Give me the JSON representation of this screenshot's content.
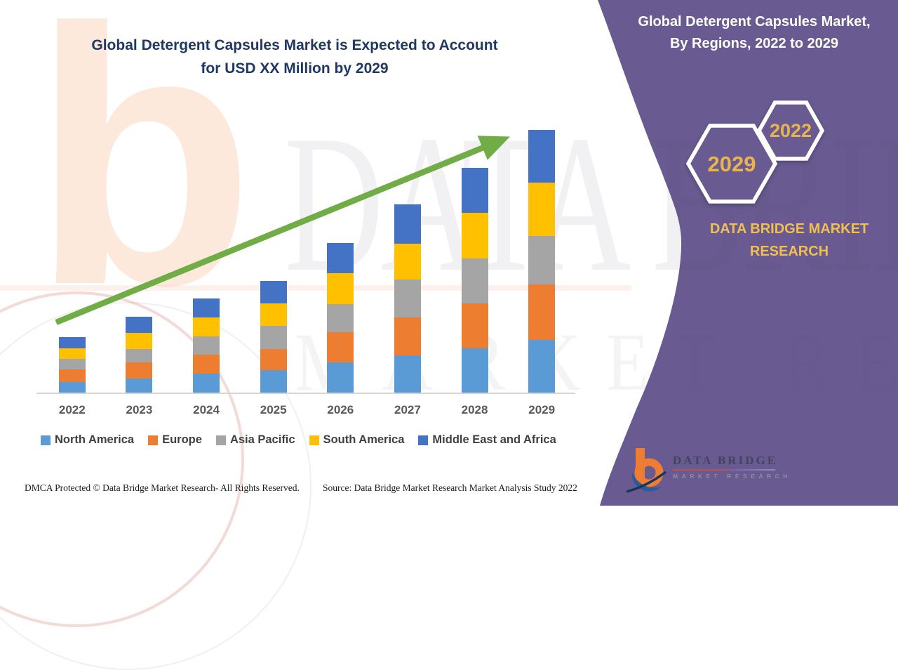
{
  "left_title": {
    "line1": "Global Detergent Capsules Market is Expected to Account",
    "line2": "for USD XX Million by 2029"
  },
  "panel": {
    "title_line1": "Global Detergent Capsules Market,",
    "title_line2": "By Regions, 2022 to 2029",
    "hexagon_small_year": "2022",
    "hexagon_large_year": "2029",
    "brand_text": "DATA BRIDGE MARKET RESEARCH",
    "purple_color": "#695A92",
    "gold_color": "#E9B54A"
  },
  "logo": {
    "name": "DATA BRIDGE",
    "subtitle": "MARKET RESEARCH"
  },
  "watermark": {
    "row1": "DATA BRIDGE",
    "row2": "MARKET RESEARCH",
    "letter": "b"
  },
  "footer": {
    "dmca": "DMCA Protected © Data Bridge Market Research- All Rights Reserved.",
    "source": "Source: Data Bridge Market Research Market Analysis Study 2022"
  },
  "chart_data": {
    "type": "bar",
    "stacked": true,
    "title": "Global Detergent Capsules Market is Expected to Account for USD XX Million by 2029",
    "xlabel": "",
    "ylabel": "",
    "value_axis": "hidden (illustrative, USD XX Million placeholder)",
    "legend_position": "bottom",
    "grid": false,
    "trend_arrow_color": "#70AD47",
    "categories": [
      "2022",
      "2023",
      "2024",
      "2025",
      "2026",
      "2027",
      "2028",
      "2029"
    ],
    "series": [
      {
        "name": "North America",
        "color": "#5B9BD5",
        "values": [
          15,
          20,
          27,
          32,
          43,
          53,
          63,
          75
        ]
      },
      {
        "name": "Europe",
        "color": "#ED7D31",
        "values": [
          18,
          23,
          27,
          30,
          43,
          54,
          64,
          79
        ]
      },
      {
        "name": "Asia Pacific",
        "color": "#A5A5A5",
        "values": [
          15,
          19,
          26,
          33,
          40,
          54,
          64,
          69
        ]
      },
      {
        "name": "South America",
        "color": "#FFC000",
        "values": [
          15,
          23,
          27,
          32,
          44,
          51,
          65,
          76
        ]
      },
      {
        "name": "Middle East and Africa",
        "color": "#4472C4",
        "values": [
          16,
          23,
          27,
          32,
          43,
          56,
          64,
          75
        ]
      }
    ],
    "totals_relative": [
      79,
      108,
      134,
      159,
      213,
      268,
      320,
      374
    ]
  }
}
